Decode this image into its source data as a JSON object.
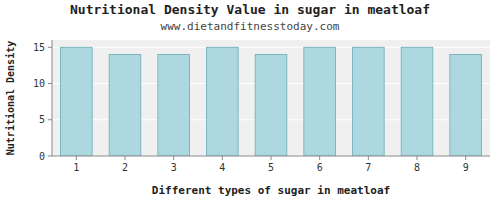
{
  "chart_data": {
    "type": "bar",
    "title": "Nutritional Density Value in sugar in meatloaf",
    "subtitle": "www.dietandfitnesstoday.com",
    "xlabel": "Different types of sugar in meatloaf",
    "ylabel": "Nutritional Density",
    "categories": [
      1,
      2,
      3,
      4,
      5,
      6,
      7,
      8,
      9
    ],
    "values": [
      15,
      14,
      14,
      15,
      14,
      15,
      15,
      15,
      14
    ],
    "color": "#add8e0",
    "ylim": [
      0,
      16
    ],
    "yticks": [
      0,
      5,
      10,
      15
    ],
    "grid": true
  }
}
